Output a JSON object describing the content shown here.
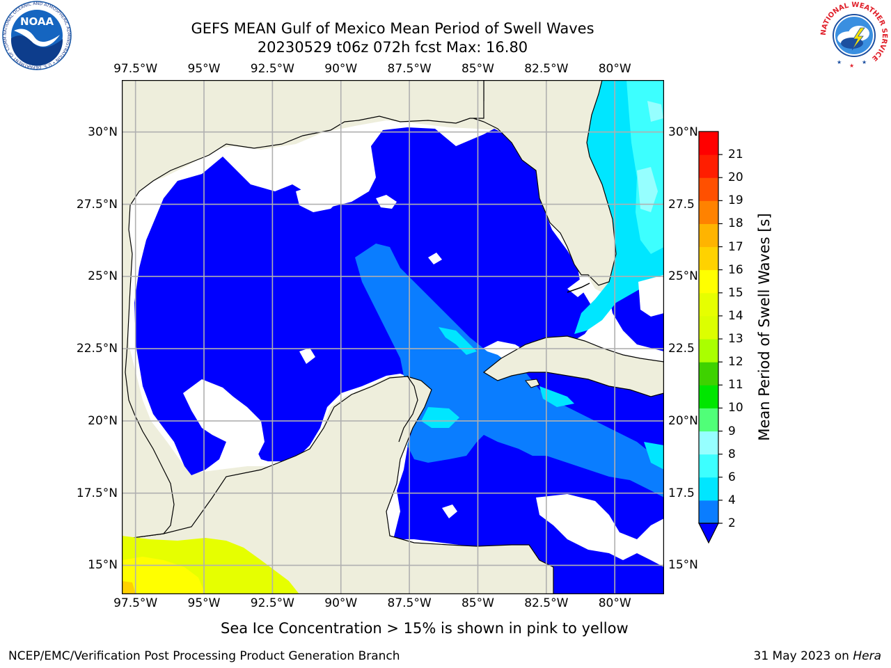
{
  "header": {
    "title_line1": "GEFS MEAN Gulf of Mexico Mean Period of Swell Waves",
    "title_line2": "20230529 t06z 072h fcst   Max: 16.80"
  },
  "map": {
    "lon_labels": [
      "97.5°W",
      "95°W",
      "92.5°W",
      "90°W",
      "87.5°W",
      "85°W",
      "82.5°W",
      "80°W"
    ],
    "lat_labels_left": [
      "30°N",
      "27.5°N",
      "25°N",
      "22.5°N",
      "20°N",
      "17.5°N",
      "15°N"
    ],
    "lat_labels_right": [
      "30°N",
      "27.5",
      "25°N",
      "22.5",
      "20°N",
      "17.5",
      "15°N"
    ],
    "lon_range": [
      -98,
      -78.2
    ],
    "lat_range": [
      14,
      31.8
    ],
    "colors": {
      "land": "#eeeedc",
      "no_data": "#ffffff",
      "grid": "#b0b0b0",
      "coast": "#000000"
    }
  },
  "colorbar": {
    "label": "Mean Period of Swell Waves [s]",
    "ticks": [
      "2",
      "4",
      "6",
      "8",
      "9",
      "10",
      "11",
      "12",
      "13",
      "14",
      "15",
      "16",
      "17",
      "18",
      "19",
      "20",
      "21"
    ],
    "colors": [
      "#0000ff",
      "#0a7dff",
      "#00e6ff",
      "#3dffff",
      "#96ffff",
      "#50ff78",
      "#00e600",
      "#3ed200",
      "#aaff00",
      "#dcff00",
      "#e6ff00",
      "#ffff00",
      "#ffd200",
      "#ffb400",
      "#ff8200",
      "#ff5000",
      "#ff1e00",
      "#ff0000"
    ]
  },
  "caption": "Sea Ice Concentration > 15% is shown in pink to yellow",
  "footer": {
    "left": "NCEP/EMC/Verification Post Processing Product Generation Branch",
    "right_prefix": "31 May 2023 on ",
    "right_machine": "Hera"
  },
  "logos": {
    "noaa_label": "NOAA",
    "noaa_ring_text": "NATIONAL OCEANIC AND ATMOSPHERIC ADMINISTRATION • U.S. DEPARTMENT OF COMMERCE •",
    "nws_ring_text": "NATIONAL WEATHER SERVICE"
  }
}
